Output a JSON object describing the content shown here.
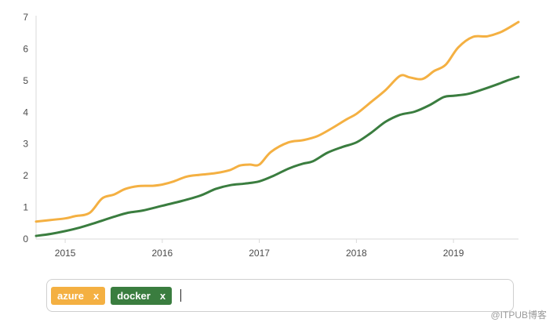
{
  "chart_data": {
    "type": "line",
    "ylim": [
      0,
      7
    ],
    "yticks": [
      "0",
      "1",
      "2",
      "3",
      "4",
      "5",
      "6",
      "7"
    ],
    "xlim": [
      2014.7,
      2019.67
    ],
    "xticks": [
      {
        "value": 2015,
        "label": "2015"
      },
      {
        "value": 2016,
        "label": "2016"
      },
      {
        "value": 2017,
        "label": "2017"
      },
      {
        "value": 2018,
        "label": "2018"
      },
      {
        "value": 2019,
        "label": "2019"
      }
    ],
    "grid": false,
    "series": [
      {
        "name": "azure",
        "color": "#f4b042",
        "points": [
          [
            2014.7,
            0.55
          ],
          [
            2014.85,
            0.6
          ],
          [
            2015.0,
            0.65
          ],
          [
            2015.1,
            0.72
          ],
          [
            2015.25,
            0.82
          ],
          [
            2015.38,
            1.28
          ],
          [
            2015.5,
            1.4
          ],
          [
            2015.62,
            1.58
          ],
          [
            2015.75,
            1.67
          ],
          [
            2015.9,
            1.68
          ],
          [
            2016.0,
            1.72
          ],
          [
            2016.12,
            1.82
          ],
          [
            2016.25,
            1.97
          ],
          [
            2016.4,
            2.03
          ],
          [
            2016.55,
            2.08
          ],
          [
            2016.7,
            2.18
          ],
          [
            2016.8,
            2.32
          ],
          [
            2016.9,
            2.35
          ],
          [
            2017.0,
            2.35
          ],
          [
            2017.12,
            2.75
          ],
          [
            2017.3,
            3.05
          ],
          [
            2017.45,
            3.12
          ],
          [
            2017.6,
            3.25
          ],
          [
            2017.75,
            3.5
          ],
          [
            2017.9,
            3.78
          ],
          [
            2018.0,
            3.95
          ],
          [
            2018.15,
            4.32
          ],
          [
            2018.3,
            4.7
          ],
          [
            2018.45,
            5.15
          ],
          [
            2018.55,
            5.1
          ],
          [
            2018.68,
            5.05
          ],
          [
            2018.8,
            5.3
          ],
          [
            2018.92,
            5.5
          ],
          [
            2019.05,
            6.05
          ],
          [
            2019.2,
            6.38
          ],
          [
            2019.35,
            6.4
          ],
          [
            2019.5,
            6.55
          ],
          [
            2019.67,
            6.85
          ]
        ]
      },
      {
        "name": "docker",
        "color": "#3a7d3f",
        "points": [
          [
            2014.7,
            0.1
          ],
          [
            2014.85,
            0.16
          ],
          [
            2015.0,
            0.25
          ],
          [
            2015.15,
            0.36
          ],
          [
            2015.3,
            0.5
          ],
          [
            2015.5,
            0.7
          ],
          [
            2015.65,
            0.83
          ],
          [
            2015.8,
            0.9
          ],
          [
            2016.0,
            1.05
          ],
          [
            2016.2,
            1.2
          ],
          [
            2016.4,
            1.38
          ],
          [
            2016.55,
            1.58
          ],
          [
            2016.7,
            1.7
          ],
          [
            2016.85,
            1.75
          ],
          [
            2017.0,
            1.82
          ],
          [
            2017.15,
            2.0
          ],
          [
            2017.3,
            2.22
          ],
          [
            2017.45,
            2.38
          ],
          [
            2017.55,
            2.45
          ],
          [
            2017.7,
            2.72
          ],
          [
            2017.85,
            2.9
          ],
          [
            2018.0,
            3.05
          ],
          [
            2018.15,
            3.35
          ],
          [
            2018.3,
            3.7
          ],
          [
            2018.45,
            3.92
          ],
          [
            2018.6,
            4.02
          ],
          [
            2018.75,
            4.22
          ],
          [
            2018.9,
            4.48
          ],
          [
            2019.0,
            4.52
          ],
          [
            2019.15,
            4.58
          ],
          [
            2019.3,
            4.72
          ],
          [
            2019.45,
            4.88
          ],
          [
            2019.55,
            5.0
          ],
          [
            2019.67,
            5.12
          ]
        ]
      }
    ]
  },
  "tag_input": {
    "tags": [
      {
        "label": "azure",
        "remove": "x",
        "color": "#f4b042"
      },
      {
        "label": "docker",
        "remove": "x",
        "color": "#3a7d3f"
      }
    ]
  },
  "watermark": "@ITPUB博客"
}
